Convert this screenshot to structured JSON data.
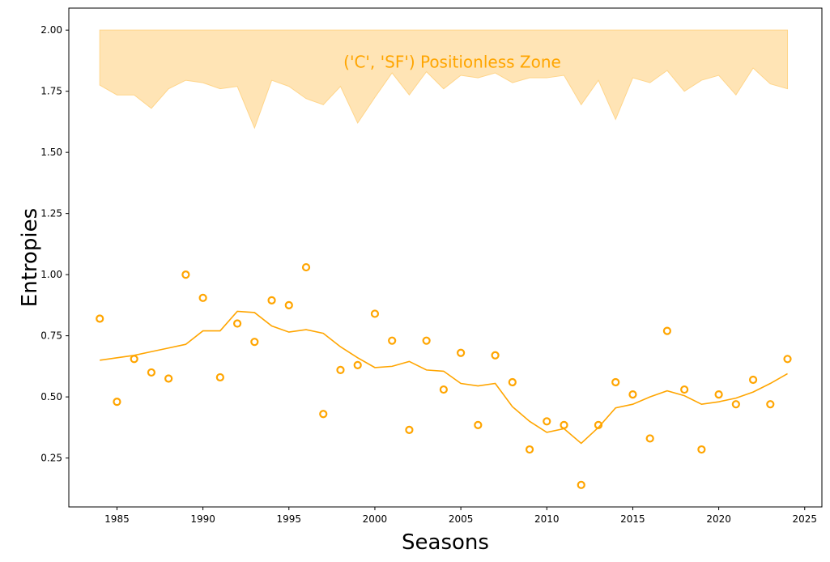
{
  "chart_data": {
    "type": "scatter",
    "xlabel": "Seasons",
    "ylabel": "Entropies",
    "xlim": [
      1982.2,
      2026.0
    ],
    "ylim": [
      0.05,
      2.09
    ],
    "x_ticks": [
      1985,
      1990,
      1995,
      2000,
      2005,
      2010,
      2015,
      2020,
      2025
    ],
    "y_ticks": [
      0.25,
      0.5,
      0.75,
      1.0,
      1.25,
      1.5,
      1.75,
      2.0
    ],
    "x_tick_labels": [
      "1985",
      "1990",
      "1995",
      "2000",
      "2005",
      "2010",
      "2015",
      "2020",
      "2025"
    ],
    "y_tick_labels": [
      "0.25",
      "0.50",
      "0.75",
      "1.00",
      "1.25",
      "1.50",
      "1.75",
      "2.00"
    ],
    "grid": false,
    "color": "#FFA500",
    "band_color": "#FFE4B5",
    "annotation": {
      "text": "('C', 'SF') Positionless Zone",
      "x": 2004.5,
      "y": 1.87
    },
    "seasons": [
      1984,
      1985,
      1986,
      1987,
      1988,
      1989,
      1990,
      1991,
      1992,
      1993,
      1994,
      1995,
      1996,
      1997,
      1998,
      1999,
      2000,
      2001,
      2002,
      2003,
      2004,
      2005,
      2006,
      2007,
      2008,
      2009,
      2010,
      2011,
      2012,
      2013,
      2014,
      2015,
      2016,
      2017,
      2018,
      2019,
      2020,
      2021,
      2022,
      2023,
      2024
    ],
    "scatter_values": [
      0.82,
      0.48,
      0.655,
      0.6,
      0.575,
      1.0,
      0.905,
      0.58,
      0.8,
      0.725,
      0.895,
      0.875,
      1.03,
      0.43,
      0.61,
      0.63,
      0.84,
      0.73,
      0.365,
      0.73,
      0.53,
      0.68,
      0.385,
      0.67,
      0.56,
      0.285,
      0.4,
      0.385,
      0.14,
      0.385,
      0.56,
      0.51,
      0.33,
      0.77,
      0.53,
      0.285,
      0.51,
      0.47,
      0.57,
      0.47,
      0.655
    ],
    "trend_values": [
      0.65,
      0.66,
      0.67,
      0.685,
      0.7,
      0.715,
      0.77,
      0.77,
      0.85,
      0.845,
      0.79,
      0.765,
      0.775,
      0.76,
      0.705,
      0.66,
      0.62,
      0.625,
      0.645,
      0.61,
      0.605,
      0.555,
      0.545,
      0.555,
      0.46,
      0.4,
      0.355,
      0.37,
      0.31,
      0.375,
      0.455,
      0.47,
      0.5,
      0.525,
      0.505,
      0.47,
      0.48,
      0.495,
      0.52,
      0.555,
      0.595
    ],
    "band_upper": 2.0,
    "band_lower": [
      1.775,
      1.735,
      1.735,
      1.68,
      1.76,
      1.795,
      1.785,
      1.76,
      1.77,
      1.6,
      1.795,
      1.77,
      1.72,
      1.695,
      1.77,
      1.62,
      1.725,
      1.825,
      1.735,
      1.83,
      1.76,
      1.815,
      1.805,
      1.825,
      1.785,
      1.805,
      1.805,
      1.815,
      1.695,
      1.795,
      1.635,
      1.805,
      1.785,
      1.835,
      1.75,
      1.795,
      1.815,
      1.735,
      1.845,
      1.78,
      1.76
    ]
  }
}
